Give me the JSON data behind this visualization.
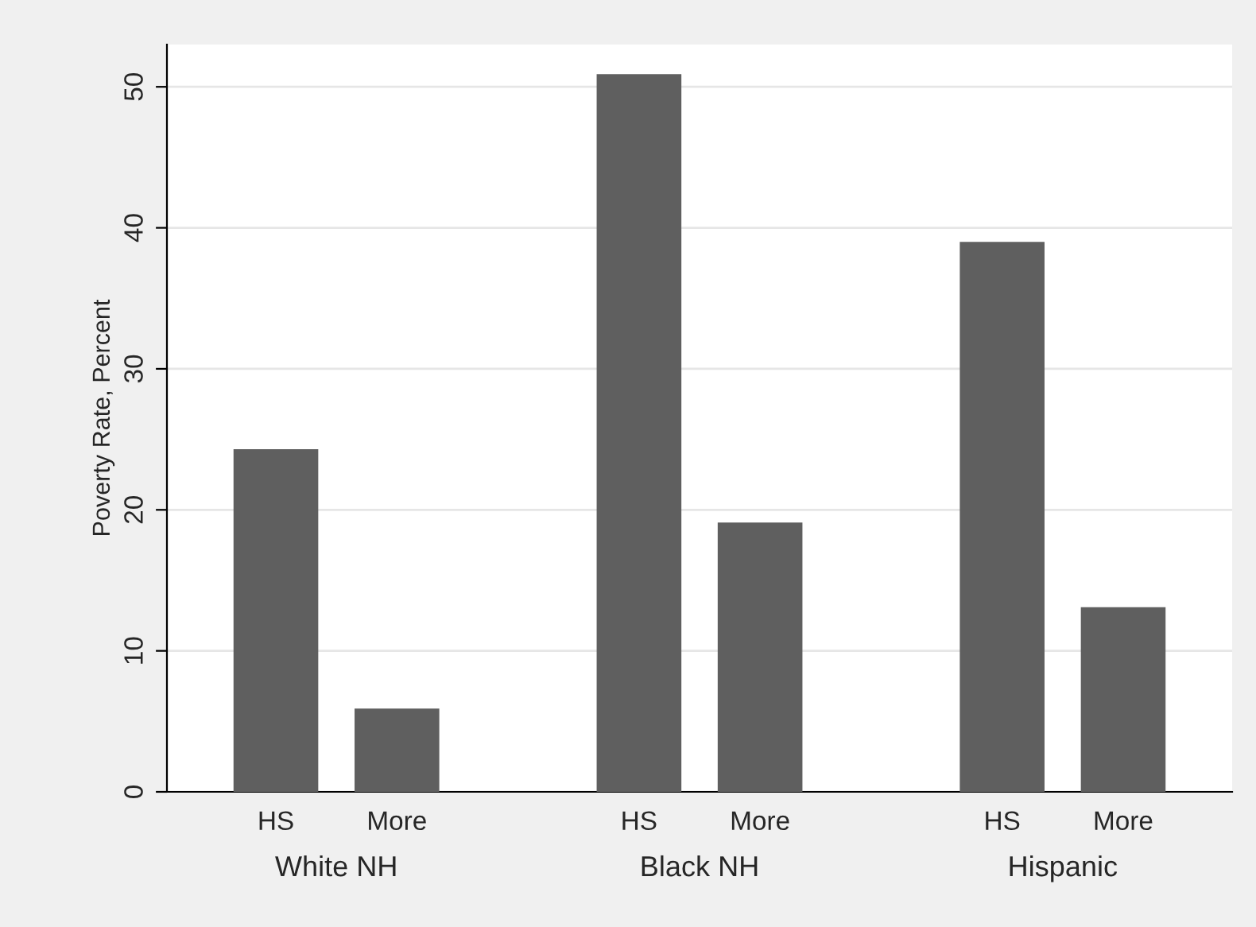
{
  "chart_data": {
    "type": "bar",
    "ylabel": "Poverty Rate, Percent",
    "categories": [
      "HS",
      "More",
      null,
      "HS",
      "More",
      null,
      "HS",
      "More"
    ],
    "values": [
      24.3,
      5.9,
      null,
      50.9,
      19.1,
      null,
      39.0,
      13.1
    ],
    "color": "#5f5f5f",
    "annotations": [
      "White NH",
      "Black NH",
      "Hispanic"
    ],
    "ylim": [
      0,
      53
    ],
    "yticks": [
      0,
      10,
      20,
      30,
      40,
      50
    ],
    "grid": "y"
  }
}
